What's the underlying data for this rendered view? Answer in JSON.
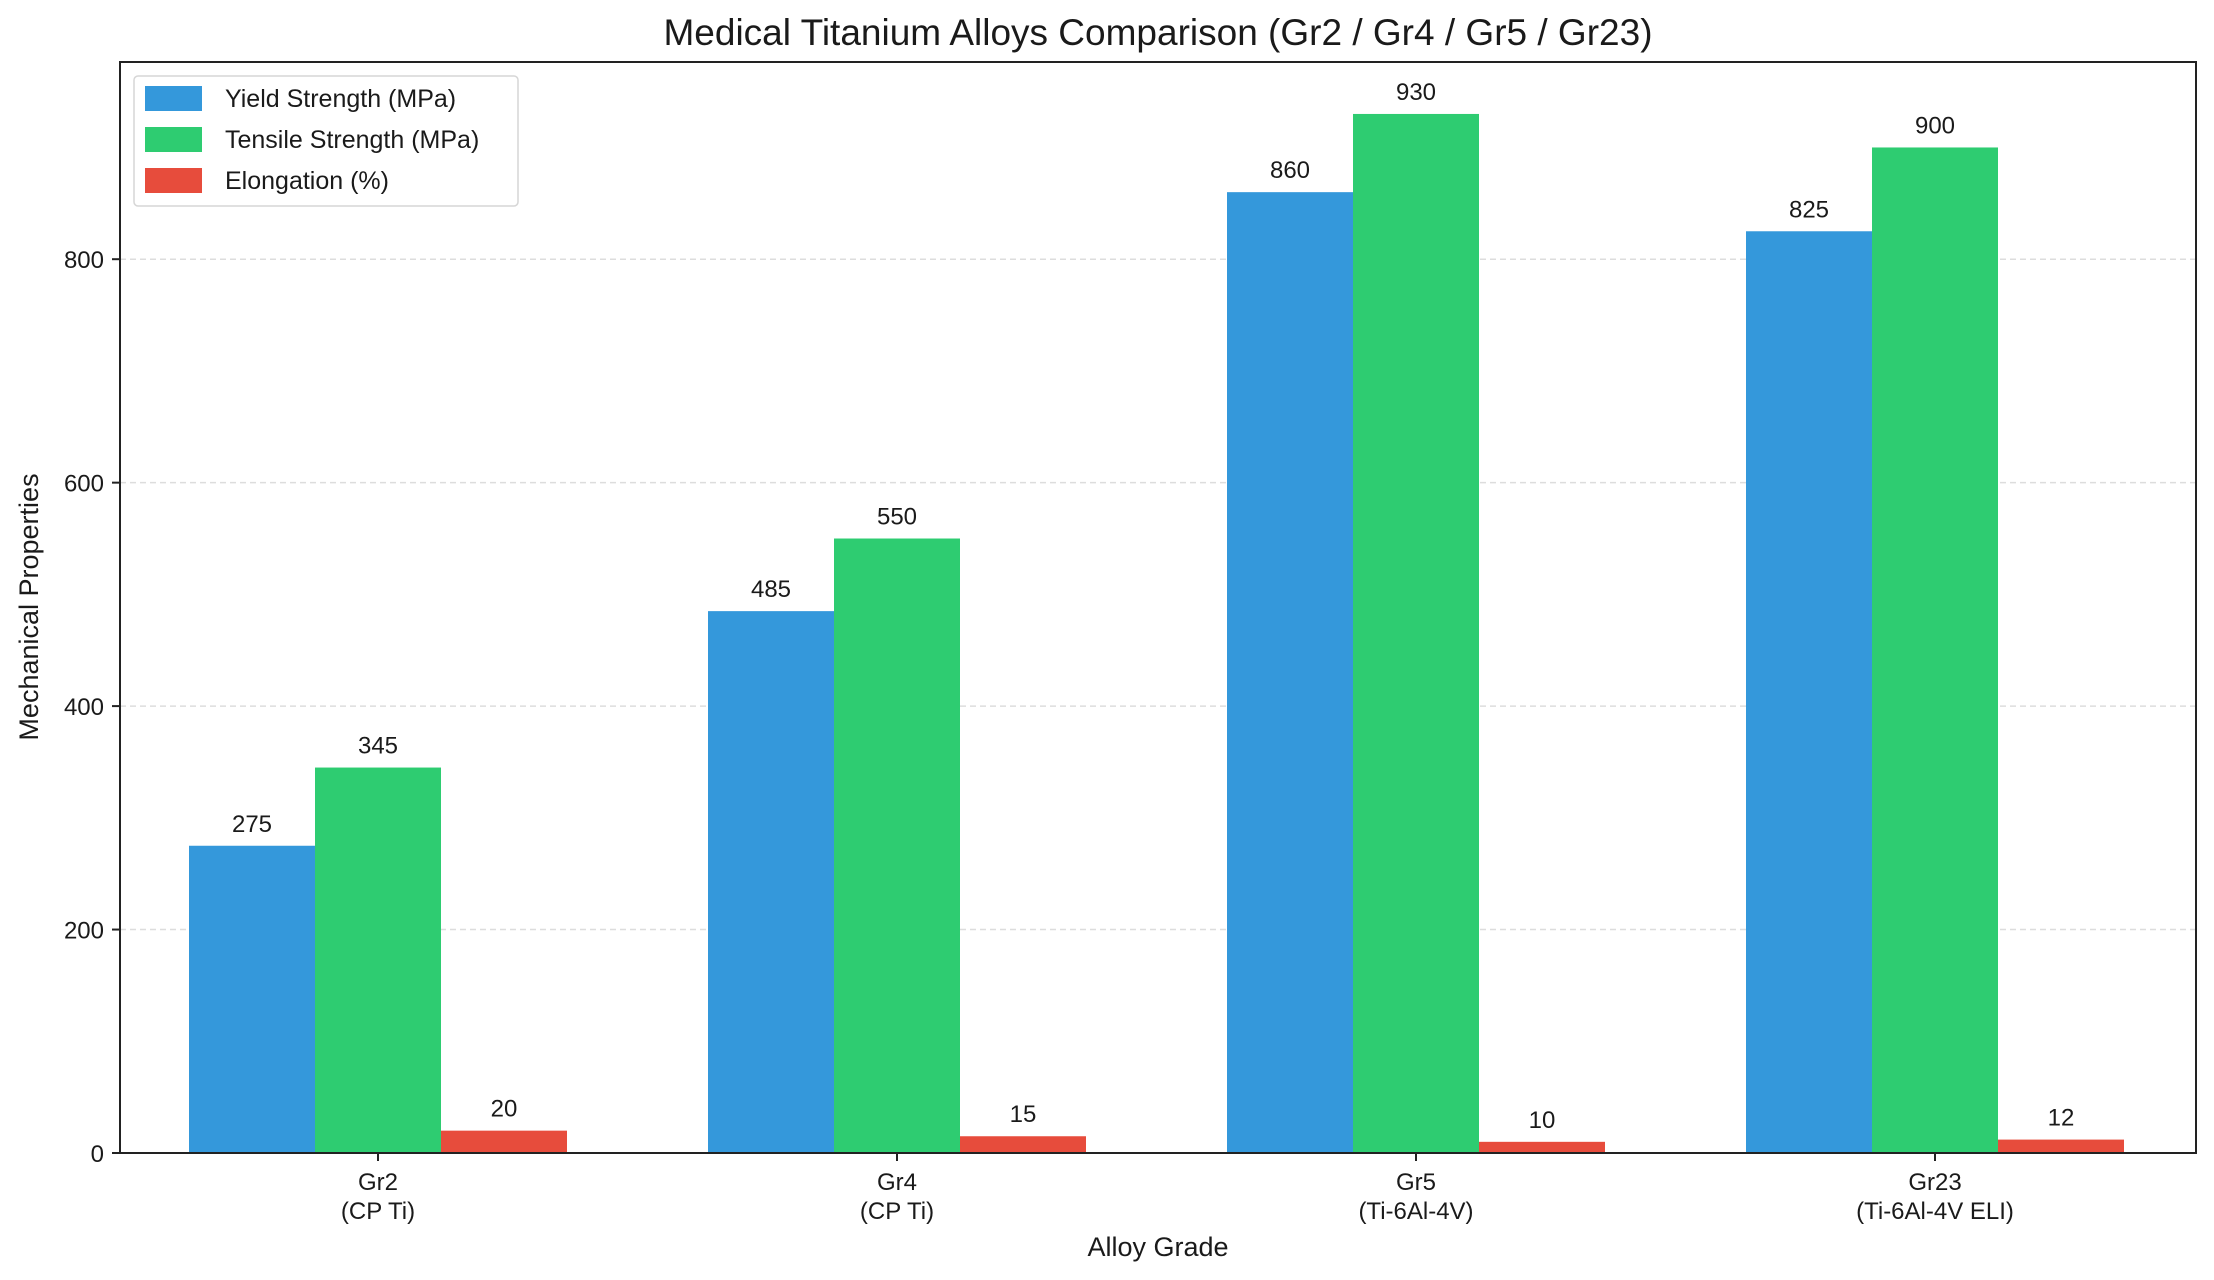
{
  "chart_data": {
    "type": "bar",
    "title": "Medical Titanium Alloys Comparison (Gr2 / Gr4 / Gr5 / Gr23)",
    "xlabel": "Alloy Grade",
    "ylabel": "Mechanical Properties",
    "categories": [
      [
        "Gr2",
        "(CP Ti)"
      ],
      [
        "Gr4",
        "(CP Ti)"
      ],
      [
        "Gr5",
        "(Ti-6Al-4V)"
      ],
      [
        "Gr23",
        "(Ti-6Al-4V ELI)"
      ]
    ],
    "series": [
      {
        "name": "Yield Strength (MPa)",
        "color": "#3498db",
        "values": [
          275,
          485,
          860,
          825
        ]
      },
      {
        "name": "Tensile Strength (MPa)",
        "color": "#2ecc71",
        "values": [
          345,
          550,
          930,
          900
        ]
      },
      {
        "name": "Elongation (%)",
        "color": "#e74c3c",
        "values": [
          20,
          15,
          10,
          12
        ]
      }
    ],
    "ylim": [
      0,
      976.5
    ],
    "yticks": [
      0,
      200,
      400,
      600,
      800
    ],
    "grid": "y, dashed",
    "legend": "top-left",
    "data_labels": true
  }
}
